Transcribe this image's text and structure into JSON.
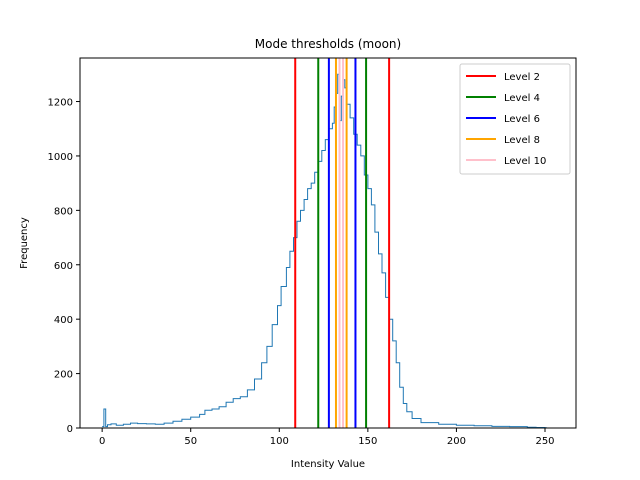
{
  "chart_data": {
    "type": "line",
    "title": "Mode thresholds (moon)",
    "xlabel": "Intensity Value",
    "ylabel": "Frequency",
    "xlim": [
      -12.5,
      267.5
    ],
    "ylim": [
      0,
      1360
    ],
    "xticks": [
      0,
      50,
      100,
      150,
      200,
      250
    ],
    "yticks": [
      0,
      200,
      400,
      600,
      800,
      1000,
      1200
    ],
    "grid": false,
    "legend_position": "top-right",
    "histogram": {
      "color": "#1f77b4",
      "points": [
        [
          0,
          5
        ],
        [
          1,
          70
        ],
        [
          2,
          5
        ],
        [
          3,
          12
        ],
        [
          5,
          15
        ],
        [
          8,
          10
        ],
        [
          12,
          14
        ],
        [
          16,
          18
        ],
        [
          20,
          16
        ],
        [
          25,
          15
        ],
        [
          30,
          14
        ],
        [
          35,
          18
        ],
        [
          40,
          25
        ],
        [
          45,
          32
        ],
        [
          50,
          40
        ],
        [
          55,
          50
        ],
        [
          58,
          65
        ],
        [
          62,
          70
        ],
        [
          66,
          78
        ],
        [
          70,
          95
        ],
        [
          74,
          108
        ],
        [
          78,
          115
        ],
        [
          82,
          140
        ],
        [
          86,
          180
        ],
        [
          90,
          240
        ],
        [
          93,
          300
        ],
        [
          96,
          380
        ],
        [
          99,
          450
        ],
        [
          101,
          520
        ],
        [
          104,
          590
        ],
        [
          106,
          650
        ],
        [
          108,
          700
        ],
        [
          110,
          760
        ],
        [
          112,
          800
        ],
        [
          114,
          840
        ],
        [
          116,
          880
        ],
        [
          118,
          900
        ],
        [
          120,
          940
        ],
        [
          122,
          980
        ],
        [
          124,
          1020
        ],
        [
          126,
          1060
        ],
        [
          128,
          1100
        ],
        [
          130,
          1120
        ],
        [
          131,
          1180
        ],
        [
          132,
          1230
        ],
        [
          133,
          1300
        ],
        [
          134,
          1130
        ],
        [
          135,
          1220
        ],
        [
          136,
          1280
        ],
        [
          137,
          1250
        ],
        [
          138,
          1190
        ],
        [
          140,
          1140
        ],
        [
          142,
          1080
        ],
        [
          144,
          1040
        ],
        [
          146,
          1000
        ],
        [
          148,
          930
        ],
        [
          150,
          880
        ],
        [
          152,
          820
        ],
        [
          154,
          720
        ],
        [
          156,
          640
        ],
        [
          158,
          570
        ],
        [
          160,
          480
        ],
        [
          162,
          400
        ],
        [
          164,
          320
        ],
        [
          166,
          240
        ],
        [
          168,
          150
        ],
        [
          170,
          90
        ],
        [
          172,
          60
        ],
        [
          175,
          35
        ],
        [
          180,
          20
        ],
        [
          190,
          14
        ],
        [
          200,
          10
        ],
        [
          210,
          8
        ],
        [
          220,
          6
        ],
        [
          230,
          5
        ],
        [
          240,
          3
        ],
        [
          245,
          2
        ],
        [
          250,
          1
        ]
      ]
    },
    "series": [
      {
        "name": "Level 2",
        "color": "#ff0000",
        "values": [
          109,
          162
        ]
      },
      {
        "name": "Level 4",
        "color": "#008000",
        "values": [
          122,
          149
        ]
      },
      {
        "name": "Level 6",
        "color": "#0000ff",
        "values": [
          128,
          143
        ]
      },
      {
        "name": "Level 8",
        "color": "#ffa500",
        "values": [
          132,
          138
        ]
      },
      {
        "name": "Level 10",
        "color": "#ffc0cb",
        "values": [
          134,
          136
        ]
      }
    ]
  }
}
